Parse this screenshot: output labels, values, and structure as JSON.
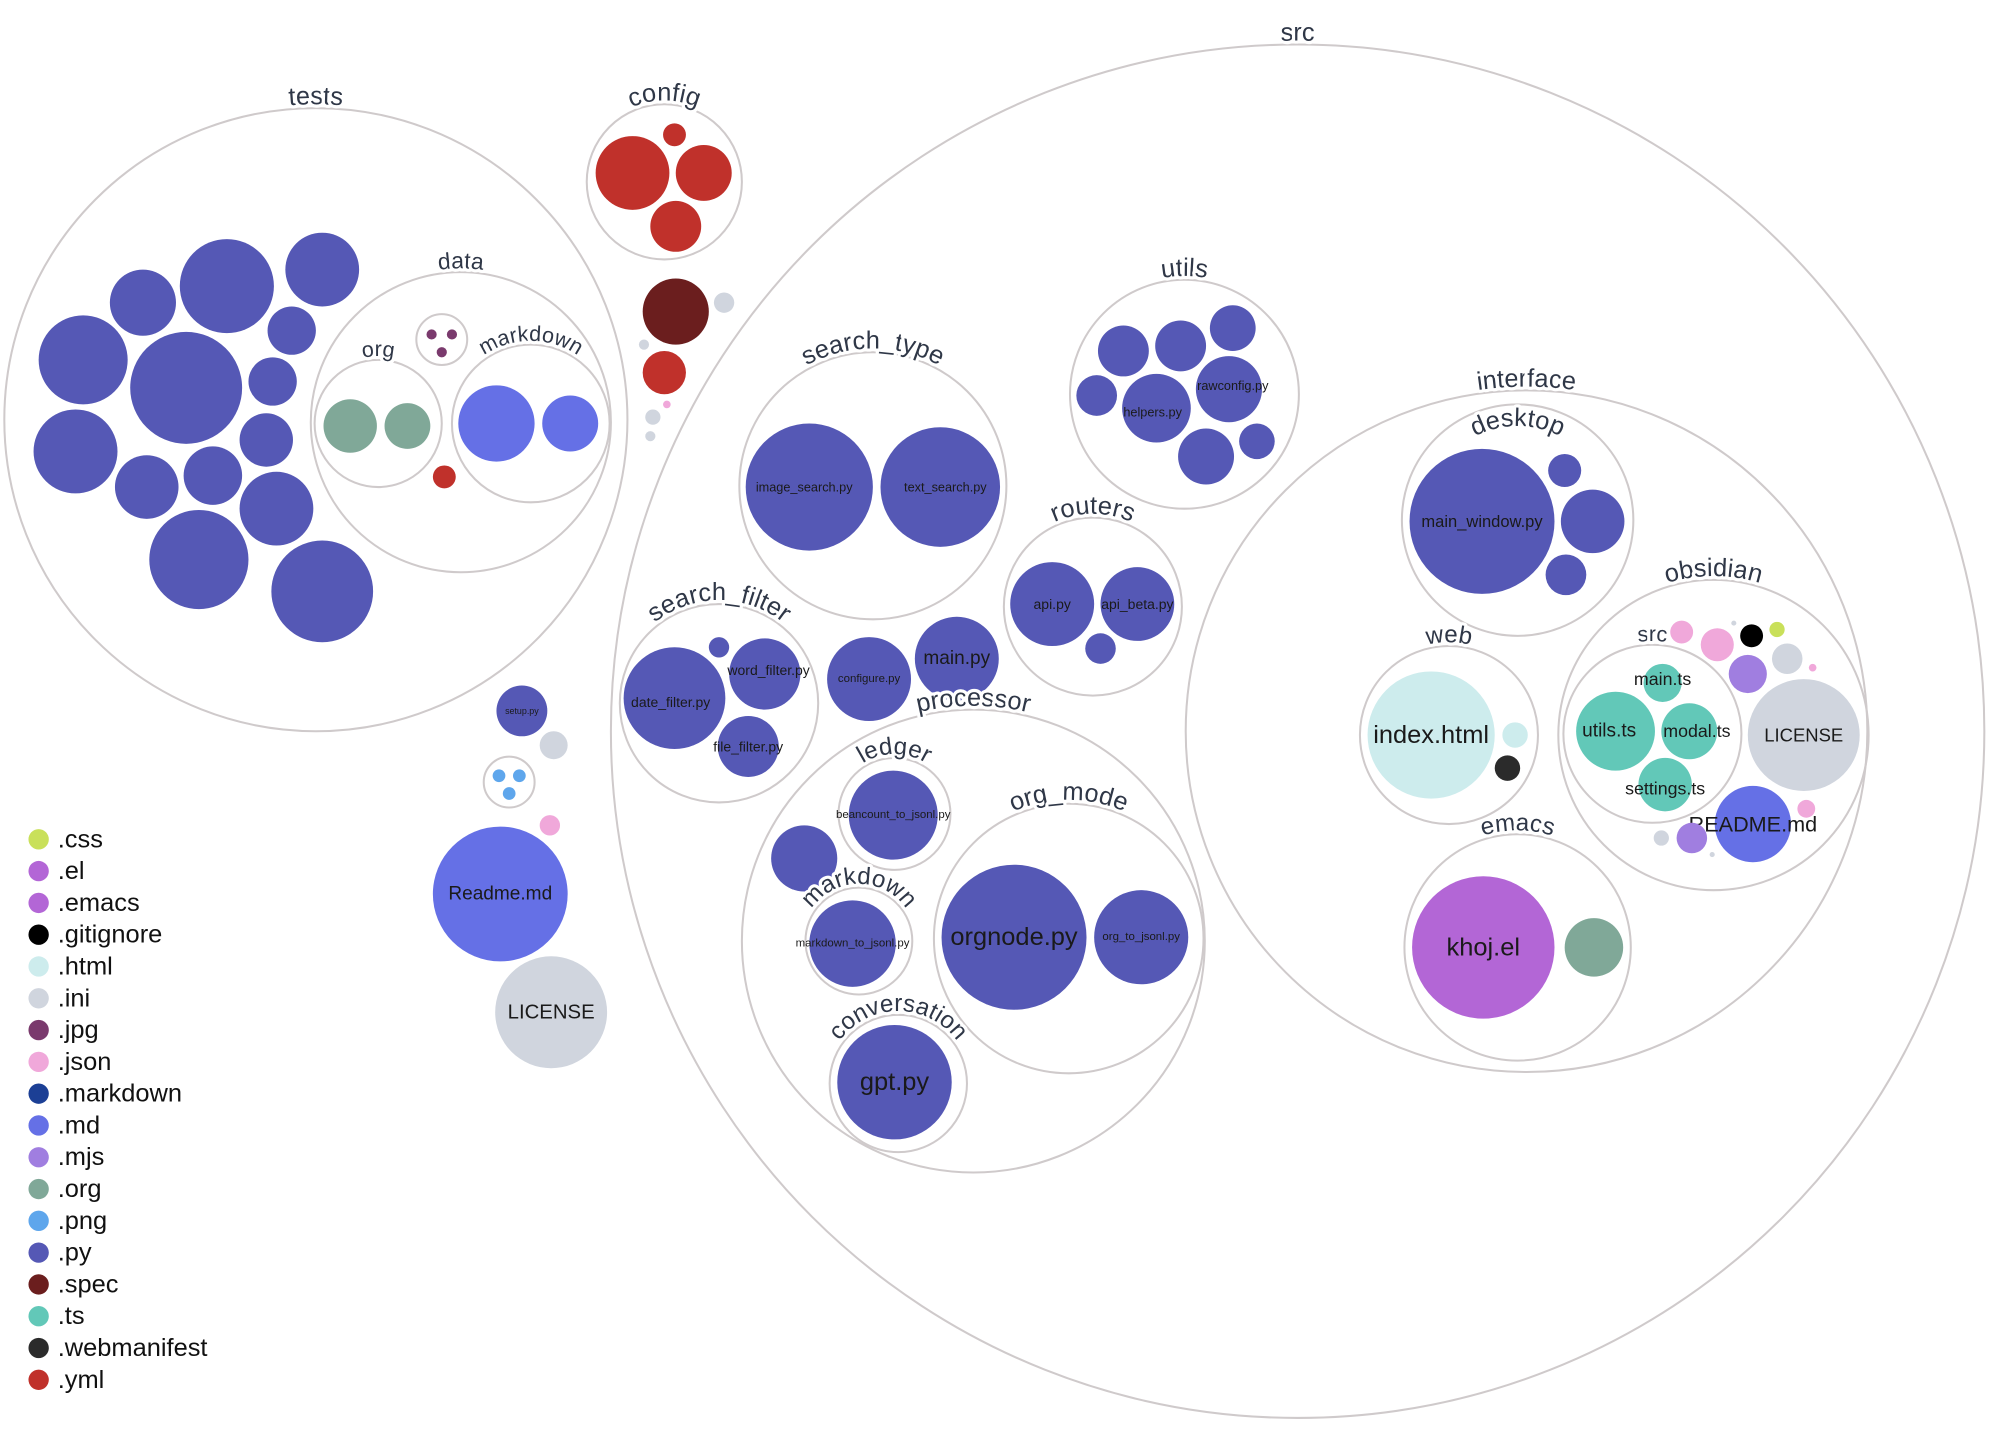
{
  "diagram": {
    "directories": [
      {
        "name": "src"
      },
      {
        "name": "tests"
      },
      {
        "name": "config"
      },
      {
        "name": "data"
      },
      {
        "name": "org"
      },
      {
        "name": "markdown"
      },
      {
        "name": ""
      },
      {
        "name": ""
      },
      {
        "name": "search_type"
      },
      {
        "name": "utils"
      },
      {
        "name": "routers"
      },
      {
        "name": "search_filter"
      },
      {
        "name": "processor"
      },
      {
        "name": "ledger"
      },
      {
        "name": "markdown"
      },
      {
        "name": "org_mode"
      },
      {
        "name": "conversation"
      },
      {
        "name": "interface"
      },
      {
        "name": "desktop"
      },
      {
        "name": "web"
      },
      {
        "name": "obsidian"
      },
      {
        "name": "src"
      },
      {
        "name": "emacs"
      }
    ],
    "files": [
      {
        "label": "",
        "ext": ".py"
      },
      {
        "label": "",
        "ext": ".py"
      },
      {
        "label": "",
        "ext": ".py"
      },
      {
        "label": "",
        "ext": ".py"
      },
      {
        "label": "",
        "ext": ".py"
      },
      {
        "label": "",
        "ext": ".py"
      },
      {
        "label": "",
        "ext": ".py"
      },
      {
        "label": "",
        "ext": ".py"
      },
      {
        "label": "",
        "ext": ".py"
      },
      {
        "label": "",
        "ext": ".py"
      },
      {
        "label": "",
        "ext": ".py"
      },
      {
        "label": "",
        "ext": ".py"
      },
      {
        "label": "",
        "ext": ".py"
      },
      {
        "label": "",
        "ext": ".py"
      },
      {
        "label": "",
        "ext": ".jpg"
      },
      {
        "label": "",
        "ext": ".jpg"
      },
      {
        "label": "",
        "ext": ".jpg"
      },
      {
        "label": "",
        "ext": ".org"
      },
      {
        "label": "",
        "ext": ".org"
      },
      {
        "label": "",
        "ext": ".md"
      },
      {
        "label": "",
        "ext": ".md"
      },
      {
        "label": "",
        "ext": ".yml"
      },
      {
        "label": "",
        "ext": ".yml"
      },
      {
        "label": "",
        "ext": ".yml"
      },
      {
        "label": "",
        "ext": ".yml"
      },
      {
        "label": "",
        "ext": ".yml"
      },
      {
        "label": "",
        "ext": ".spec"
      },
      {
        "label": "",
        "ext": ".ini"
      },
      {
        "label": "",
        "ext": ".ini"
      },
      {
        "label": "",
        "ext": ".yml"
      },
      {
        "label": "",
        "ext": ".json"
      },
      {
        "label": "",
        "ext": ".ini"
      },
      {
        "label": "",
        "ext": ".ini"
      },
      {
        "label": "setup.py",
        "ext": ".py"
      },
      {
        "label": "",
        "ext": ".ini"
      },
      {
        "label": "",
        "ext": ".png"
      },
      {
        "label": "",
        "ext": ".png"
      },
      {
        "label": "",
        "ext": ".png"
      },
      {
        "label": "",
        "ext": ".json"
      },
      {
        "label": "Readme.md",
        "ext": ".md"
      },
      {
        "label": "LICENSE",
        "ext": ".ini"
      },
      {
        "label": "image_search.py",
        "ext": ".py"
      },
      {
        "label": "text_search.py",
        "ext": ".py"
      },
      {
        "label": "",
        "ext": ".py"
      },
      {
        "label": "",
        "ext": ".py"
      },
      {
        "label": "",
        "ext": ".py"
      },
      {
        "label": "",
        "ext": ".py"
      },
      {
        "label": "helpers.py",
        "ext": ".py"
      },
      {
        "label": "rawconfig.py",
        "ext": ".py"
      },
      {
        "label": "",
        "ext": ".py"
      },
      {
        "label": "",
        "ext": ".py"
      },
      {
        "label": "api.py",
        "ext": ".py"
      },
      {
        "label": "api_beta.py",
        "ext": ".py"
      },
      {
        "label": "",
        "ext": ".py"
      },
      {
        "label": "date_filter.py",
        "ext": ".py"
      },
      {
        "label": "",
        "ext": ".py"
      },
      {
        "label": "word_filter.py",
        "ext": ".py"
      },
      {
        "label": "file_filter.py",
        "ext": ".py"
      },
      {
        "label": "configure.py",
        "ext": ".py"
      },
      {
        "label": "main.py",
        "ext": ".py"
      },
      {
        "label": "beancount_to_jsonl.py",
        "ext": ".py"
      },
      {
        "label": "",
        "ext": ".py"
      },
      {
        "label": "markdown_to_jsonl.py",
        "ext": ".py"
      },
      {
        "label": "orgnode.py",
        "ext": ".py"
      },
      {
        "label": "org_to_jsonl.py",
        "ext": ".py"
      },
      {
        "label": "gpt.py",
        "ext": ".py"
      },
      {
        "label": "main_window.py",
        "ext": ".py"
      },
      {
        "label": "",
        "ext": ".py"
      },
      {
        "label": "",
        "ext": ".py"
      },
      {
        "label": "",
        "ext": ".py"
      },
      {
        "label": "index.html",
        "ext": ".html"
      },
      {
        "label": "",
        "ext": ".html"
      },
      {
        "label": "",
        "ext": ".webmanifest"
      },
      {
        "label": "",
        "ext": ".png"
      },
      {
        "label": "",
        "ext": ".json"
      },
      {
        "label": "",
        "ext": ".json"
      },
      {
        "label": "",
        "ext": ".ini"
      },
      {
        "label": "",
        "ext": ".gitignore"
      },
      {
        "label": "",
        "ext": ".css"
      },
      {
        "label": "",
        "ext": ".mjs"
      },
      {
        "label": "",
        "ext": ".ini"
      },
      {
        "label": "",
        "ext": ".json"
      },
      {
        "label": "LICENSE",
        "ext": ".ini"
      },
      {
        "label": "README.md",
        "ext": ".md"
      },
      {
        "label": "",
        "ext": ".json"
      },
      {
        "label": "",
        "ext": ".ini"
      },
      {
        "label": "",
        "ext": ".mjs"
      },
      {
        "label": "",
        "ext": ".ini"
      },
      {
        "label": "main.ts",
        "ext": ".ts"
      },
      {
        "label": "utils.ts",
        "ext": ".ts"
      },
      {
        "label": "modal.ts",
        "ext": ".ts"
      },
      {
        "label": "settings.ts",
        "ext": ".ts"
      },
      {
        "label": "khoj.el",
        "ext": ".el"
      },
      {
        "label": "",
        "ext": ".org"
      }
    ]
  },
  "legend": [
    {
      "ext": ".css",
      "color": "#c9e05a"
    },
    {
      "ext": ".el",
      "color": "#b366d6"
    },
    {
      "ext": ".emacs",
      "color": "#b366d6"
    },
    {
      "ext": ".gitignore",
      "color": "#000000"
    },
    {
      "ext": ".html",
      "color": "#cdeced"
    },
    {
      "ext": ".ini",
      "color": "#d0d5de"
    },
    {
      "ext": ".jpg",
      "color": "#7a3a6d"
    },
    {
      "ext": ".json",
      "color": "#f0a8da"
    },
    {
      "ext": ".markdown",
      "color": "#1c3f95"
    },
    {
      "ext": ".md",
      "color": "#6570e6"
    },
    {
      "ext": ".mjs",
      "color": "#a07ee0"
    },
    {
      "ext": ".org",
      "color": "#80a898"
    },
    {
      "ext": ".png",
      "color": "#5ea6ec"
    },
    {
      "ext": ".py",
      "color": "#5558b5"
    },
    {
      "ext": ".spec",
      "color": "#6b1e1e"
    },
    {
      "ext": ".ts",
      "color": "#62c8b8"
    },
    {
      "ext": ".webmanifest",
      "color": "#2b2b2b"
    },
    {
      "ext": ".yml",
      "color": "#c0312b"
    }
  ]
}
